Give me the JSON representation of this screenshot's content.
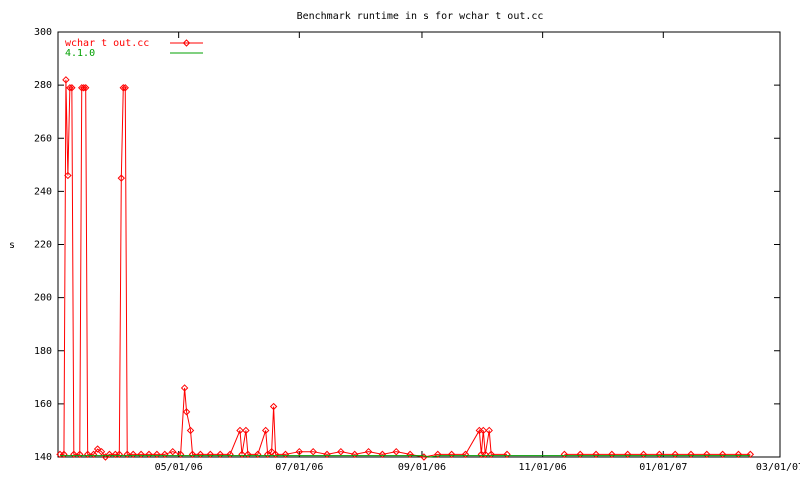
{
  "chart_data": {
    "type": "line",
    "title": "Benchmark runtime in s for wchar t out.cc",
    "y_label": "s",
    "xlim": [
      "2006-03-01",
      "2007-03-01"
    ],
    "xticks": [
      {
        "value": "2006-05-01",
        "label": "05/01/06"
      },
      {
        "value": "2006-07-01",
        "label": "07/01/06"
      },
      {
        "value": "2006-09-01",
        "label": "09/01/06"
      },
      {
        "value": "2006-11-01",
        "label": "11/01/06"
      },
      {
        "value": "2007-01-01",
        "label": "01/01/07"
      },
      {
        "value": "2007-03-01",
        "label": "03/01/07"
      }
    ],
    "ylim": [
      140,
      300
    ],
    "yticks": [
      140,
      160,
      180,
      200,
      220,
      240,
      260,
      280,
      300
    ],
    "legend": "top-left",
    "series": [
      {
        "name": "wchar t out.cc",
        "color": "#ff0000",
        "marker": "diamond",
        "x": [
          "2006-03-02",
          "2006-03-04",
          "2006-03-05",
          "2006-03-06",
          "2006-03-07",
          "2006-03-08",
          "2006-03-09",
          "2006-03-12",
          "2006-03-13",
          "2006-03-14",
          "2006-03-15",
          "2006-03-16",
          "2006-03-19",
          "2006-03-21",
          "2006-03-23",
          "2006-03-25",
          "2006-03-27",
          "2006-03-30",
          "2006-04-01",
          "2006-04-02",
          "2006-04-03",
          "2006-04-04",
          "2006-04-05",
          "2006-04-08",
          "2006-04-12",
          "2006-04-16",
          "2006-04-20",
          "2006-04-24",
          "2006-04-28",
          "2006-05-02",
          "2006-05-04",
          "2006-05-05",
          "2006-05-07",
          "2006-05-08",
          "2006-05-12",
          "2006-05-17",
          "2006-05-22",
          "2006-05-27",
          "2006-06-01",
          "2006-06-02",
          "2006-06-04",
          "2006-06-05",
          "2006-06-10",
          "2006-06-14",
          "2006-06-15",
          "2006-06-17",
          "2006-06-18",
          "2006-06-19",
          "2006-06-24",
          "2006-07-01",
          "2006-07-08",
          "2006-07-15",
          "2006-07-22",
          "2006-07-29",
          "2006-08-05",
          "2006-08-12",
          "2006-08-19",
          "2006-08-26",
          "2006-09-02",
          "2006-09-09",
          "2006-09-16",
          "2006-09-23",
          "2006-09-30",
          "2006-10-01",
          "2006-10-02",
          "2006-10-03",
          "2006-10-05",
          "2006-10-06",
          "2006-10-14",
          "2006-10-25",
          "2006-11-12",
          "2006-11-20",
          "2006-11-28",
          "2006-12-06",
          "2006-12-14",
          "2006-12-22",
          "2006-12-30",
          "2007-01-07",
          "2007-01-15",
          "2007-01-23",
          "2007-01-31",
          "2007-02-08",
          "2007-02-14"
        ],
        "values": [
          141,
          141,
          282,
          246,
          279,
          279,
          141,
          141,
          279,
          279,
          279,
          141,
          141,
          143,
          142,
          140,
          141,
          141,
          141,
          245,
          279,
          279,
          141,
          141,
          141,
          141,
          141,
          141,
          142,
          141,
          166,
          157,
          150,
          141,
          141,
          141,
          141,
          141,
          150,
          141,
          150,
          141,
          141,
          150,
          141,
          142,
          159,
          141,
          141,
          142,
          142,
          141,
          142,
          141,
          142,
          141,
          142,
          141,
          140,
          141,
          141,
          141,
          150,
          141,
          150,
          141,
          150,
          141,
          141,
          null,
          141,
          141,
          141,
          141,
          141,
          141,
          141,
          141,
          141,
          141,
          141,
          141,
          141
        ]
      },
      {
        "name": "4.1.0",
        "color": "#00a000",
        "x": [
          "2006-03-02",
          "2006-05-01",
          "2006-07-01",
          "2006-09-01",
          "2006-09-05",
          "2006-09-10",
          "2006-11-01",
          "2007-01-01",
          "2007-02-14"
        ],
        "values": [
          140.5,
          140.5,
          140.5,
          140.5,
          140,
          140.5,
          140.5,
          140.5,
          140.5
        ]
      }
    ]
  }
}
